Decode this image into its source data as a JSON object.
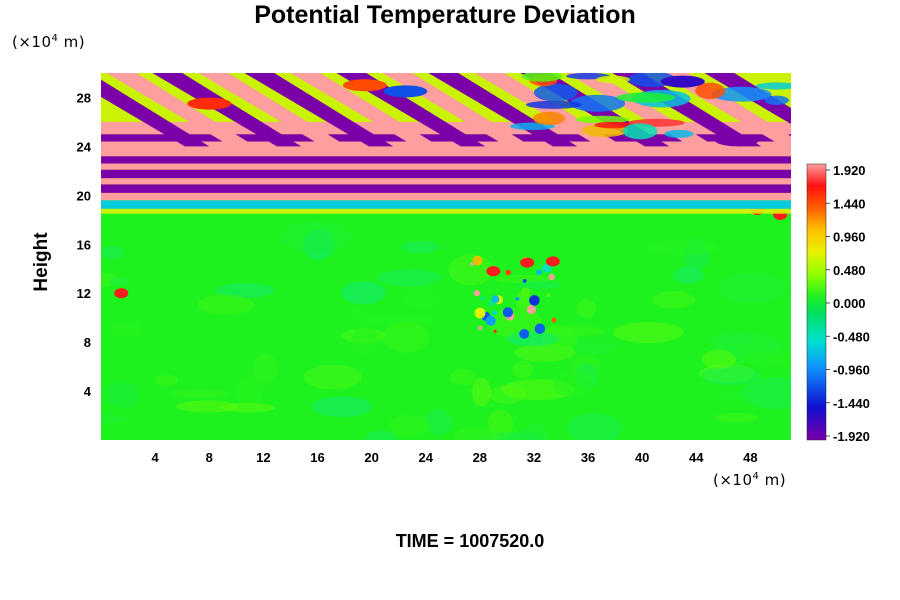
{
  "chart_data": {
    "type": "heatmap",
    "title": "Potential Temperature Deviation",
    "ylabel": "Height",
    "y_unit": {
      "prefix": "(×10",
      "exp": "4",
      "suffix": " m)"
    },
    "x_unit": {
      "prefix": "(×10",
      "exp": "4",
      "suffix": " m)"
    },
    "x_ticks": [
      "4",
      "8",
      "12",
      "16",
      "20",
      "24",
      "28",
      "32",
      "36",
      "40",
      "44",
      "48"
    ],
    "y_ticks": [
      "4",
      "8",
      "12",
      "16",
      "20",
      "24",
      "28"
    ],
    "xlim": [
      0,
      51
    ],
    "ylim": [
      0,
      30
    ],
    "colorbar": {
      "labels": [
        "1.920",
        "1.440",
        "0.960",
        "0.480",
        "0.000",
        "-0.480",
        "-0.960",
        "-1.440",
        "-1.920"
      ],
      "range": [
        -1.92,
        1.92
      ]
    },
    "annotation": "TIME = 1007520.0",
    "colors": {
      "field": "#1ef21e",
      "positive_max": "#ff9e9e",
      "negative_max": "#8c00b4"
    }
  }
}
